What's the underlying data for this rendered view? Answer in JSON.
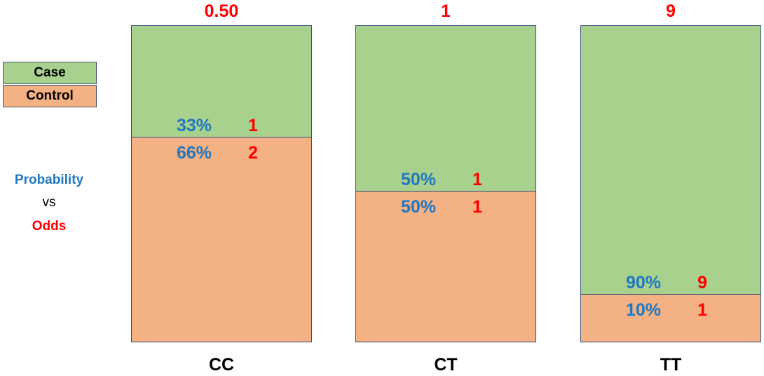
{
  "colors": {
    "case": "#a9d18e",
    "control": "#f4b183",
    "probability": "#1f78c1",
    "odds": "#ff0000"
  },
  "legend": {
    "case_label": "Case",
    "control_label": "Control"
  },
  "side_text": {
    "probability": "Probability",
    "vs": "vs",
    "odds": "Odds"
  },
  "chart_data": {
    "type": "bar",
    "categories": [
      "CC",
      "CT",
      "TT"
    ],
    "series": [
      {
        "name": "Case",
        "values": [
          0.33,
          0.5,
          0.9
        ]
      },
      {
        "name": "Control",
        "values": [
          0.66,
          0.5,
          0.1
        ]
      }
    ],
    "ylim": [
      0,
      1
    ],
    "groups": [
      {
        "genotype": "CC",
        "odds_ratio": "0.50",
        "case_pct": "33%",
        "case_odds": "1",
        "control_pct": "66%",
        "control_odds": "2",
        "case_fraction": 0.353
      },
      {
        "genotype": "CT",
        "odds_ratio": "1",
        "case_pct": "50%",
        "case_odds": "1",
        "control_pct": "50%",
        "control_odds": "1",
        "case_fraction": 0.524
      },
      {
        "genotype": "TT",
        "odds_ratio": "9",
        "case_pct": "90%",
        "case_odds": "9",
        "control_pct": "10%",
        "control_odds": "1",
        "case_fraction": 0.85
      }
    ]
  }
}
